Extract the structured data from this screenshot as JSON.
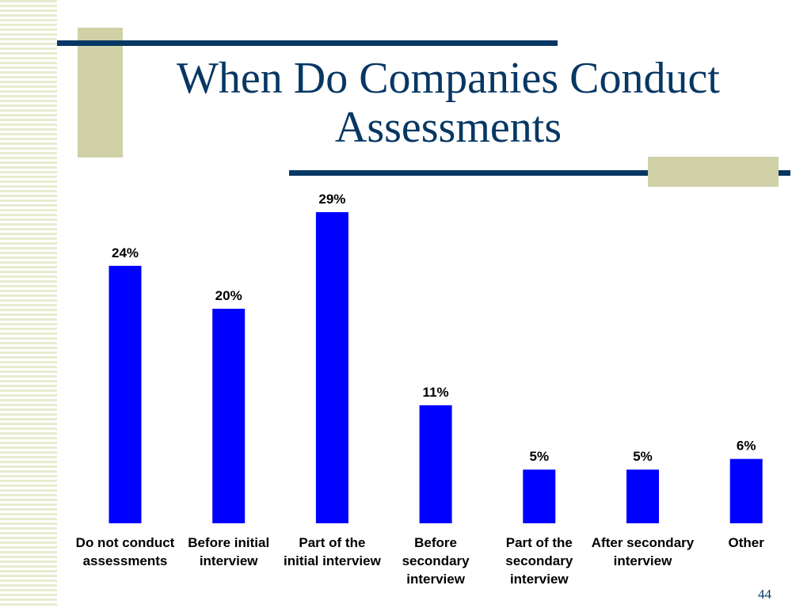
{
  "slide": {
    "title": "When Do Companies Conduct Assessments",
    "page_number": "44"
  },
  "colors": {
    "bar": "#0000ff",
    "title": "#073763",
    "accent": "#d0d1a7"
  },
  "chart_data": {
    "type": "bar",
    "title": "When Do Companies Conduct Assessments",
    "categories": [
      "Do not conduct assessments",
      "Before initial interview",
      "Part of the initial interview",
      "Before secondary interview",
      "Part of the secondary interview",
      "After secondary interview",
      "Other"
    ],
    "values": [
      24,
      20,
      29,
      11,
      5,
      5,
      6
    ],
    "data_labels": [
      "24%",
      "20%",
      "29%",
      "11%",
      "5%",
      "5%",
      "6%"
    ],
    "xlabel": "",
    "ylabel": "",
    "ylim": [
      0,
      29
    ],
    "grid": false
  }
}
